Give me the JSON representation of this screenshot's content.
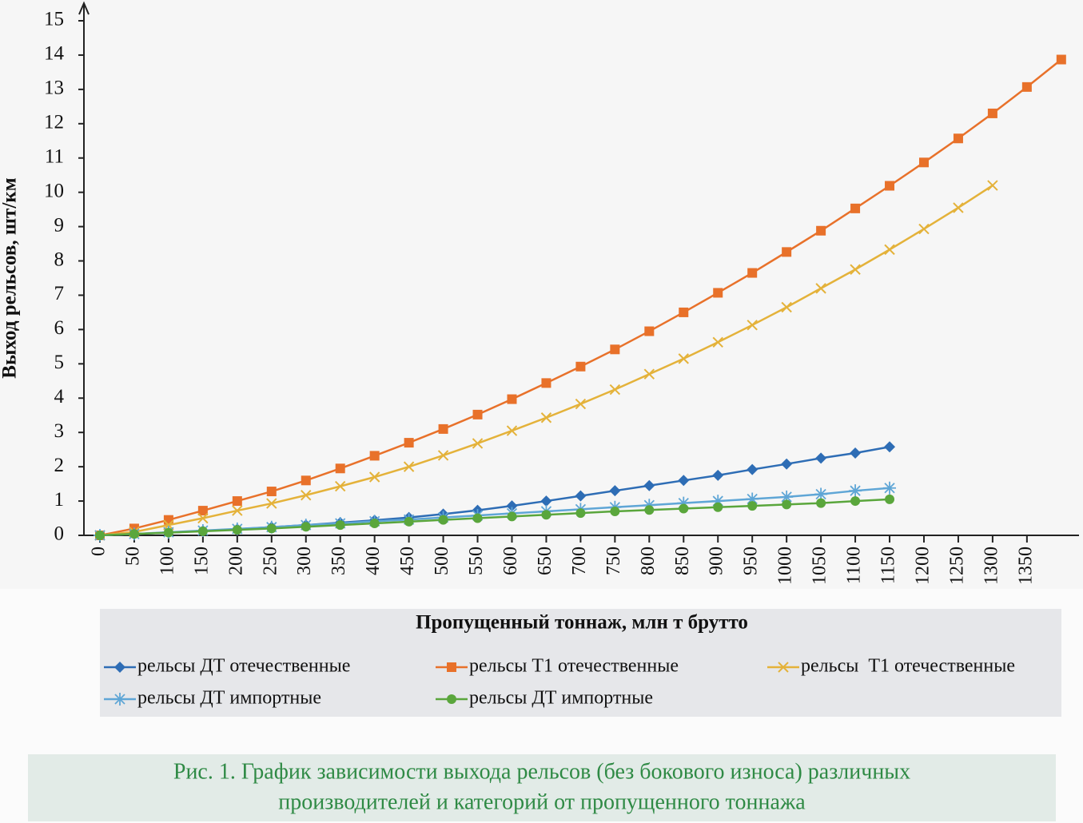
{
  "chart_data": {
    "type": "line",
    "x_label": "Пропущенный тоннаж, млн т брутто",
    "y_label": "Выход рельсов, шт/км",
    "x": [
      0,
      50,
      100,
      150,
      200,
      250,
      300,
      350,
      400,
      450,
      500,
      550,
      600,
      650,
      700,
      750,
      800,
      850,
      900,
      950,
      1000,
      1050,
      1100,
      1150,
      1200,
      1250,
      1300,
      1350,
      1400
    ],
    "xlim": [
      0,
      1420
    ],
    "xticks": [
      0,
      50,
      100,
      150,
      200,
      250,
      300,
      350,
      400,
      450,
      500,
      550,
      600,
      650,
      700,
      750,
      800,
      850,
      900,
      950,
      1000,
      1050,
      1100,
      1150,
      1200,
      1250,
      1300,
      1350
    ],
    "ylim": [
      0,
      15
    ],
    "yticks": [
      0,
      1,
      2,
      3,
      4,
      5,
      6,
      7,
      8,
      9,
      10,
      11,
      12,
      13,
      14,
      15
    ],
    "grid": false,
    "series": [
      {
        "name": "рельсы ДТ отечественные",
        "color": "#2e6db5",
        "marker": "diamond",
        "values": [
          0,
          0.04,
          0.08,
          0.13,
          0.18,
          0.24,
          0.3,
          0.37,
          0.44,
          0.52,
          0.62,
          0.73,
          0.86,
          1.0,
          1.15,
          1.3,
          1.45,
          1.6,
          1.75,
          1.92,
          2.08,
          2.25,
          2.4,
          2.58,
          null,
          null,
          null,
          null,
          null
        ]
      },
      {
        "name": "рельсы Т1 отечественные",
        "color": "#e8712a",
        "marker": "square",
        "values": [
          0,
          0.2,
          0.45,
          0.72,
          1.0,
          1.28,
          1.6,
          1.95,
          2.32,
          2.7,
          3.1,
          3.52,
          3.97,
          4.44,
          4.92,
          5.42,
          5.95,
          6.5,
          7.07,
          7.65,
          8.26,
          8.88,
          9.53,
          10.19,
          10.87,
          11.57,
          12.3,
          13.07,
          13.87
        ]
      },
      {
        "name": "рельсы  Т1 отечественные",
        "color": "#e4b23a",
        "marker": "x",
        "values": [
          0,
          0.1,
          0.3,
          0.5,
          0.72,
          0.93,
          1.17,
          1.43,
          1.7,
          2.0,
          2.33,
          2.68,
          3.05,
          3.43,
          3.83,
          4.25,
          4.7,
          5.15,
          5.63,
          6.13,
          6.65,
          7.2,
          7.75,
          8.33,
          8.93,
          9.55,
          10.2,
          null,
          null
        ]
      },
      {
        "name": "рельсы ДТ импортные",
        "color": "#5fa6d6",
        "marker": "star",
        "values": [
          0,
          0.04,
          0.09,
          0.14,
          0.19,
          0.24,
          0.3,
          0.35,
          0.41,
          0.46,
          0.52,
          0.58,
          0.64,
          0.7,
          0.76,
          0.82,
          0.88,
          0.94,
          1.0,
          1.06,
          1.12,
          1.2,
          1.3,
          1.38,
          null,
          null,
          null,
          null,
          null
        ]
      },
      {
        "name": "рельсы ДТ импортные",
        "color": "#5aa63c",
        "marker": "circle",
        "values": [
          0,
          0.04,
          0.08,
          0.12,
          0.16,
          0.2,
          0.25,
          0.3,
          0.35,
          0.4,
          0.45,
          0.5,
          0.55,
          0.6,
          0.65,
          0.7,
          0.74,
          0.78,
          0.82,
          0.86,
          0.9,
          0.94,
          1.0,
          1.05,
          null,
          null,
          null,
          null,
          null
        ]
      }
    ],
    "caption": [
      "Рис. 1. График зависимости выхода рельсов (без бокового износа) различных",
      "производителей и категорий от пропущенного тоннажа"
    ]
  }
}
